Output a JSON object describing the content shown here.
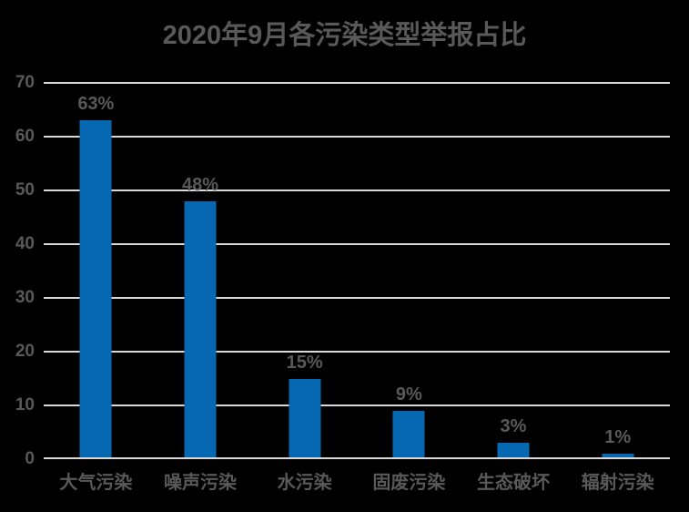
{
  "colors": {
    "background": "#000000",
    "bar": "#0768b2",
    "text": "#595959",
    "gridline": "#d9d9d9",
    "axis": "#d9d9d9"
  },
  "chart_data": {
    "type": "bar",
    "title": "2020年9月各污染类型举报占比",
    "categories": [
      "大气污染",
      "噪声污染",
      "水污染",
      "固废污染",
      "生态破坏",
      "辐射污染"
    ],
    "values": [
      63,
      48,
      15,
      9,
      3,
      1
    ],
    "data_labels": [
      "63%",
      "48%",
      "15%",
      "9%",
      "3%",
      "1%"
    ],
    "xlabel": "",
    "ylabel": "",
    "ylim": [
      0,
      70
    ],
    "yticks": [
      0,
      10,
      20,
      30,
      40,
      50,
      60,
      70
    ],
    "grid": "horizontal",
    "legend": "none",
    "background": "black"
  }
}
